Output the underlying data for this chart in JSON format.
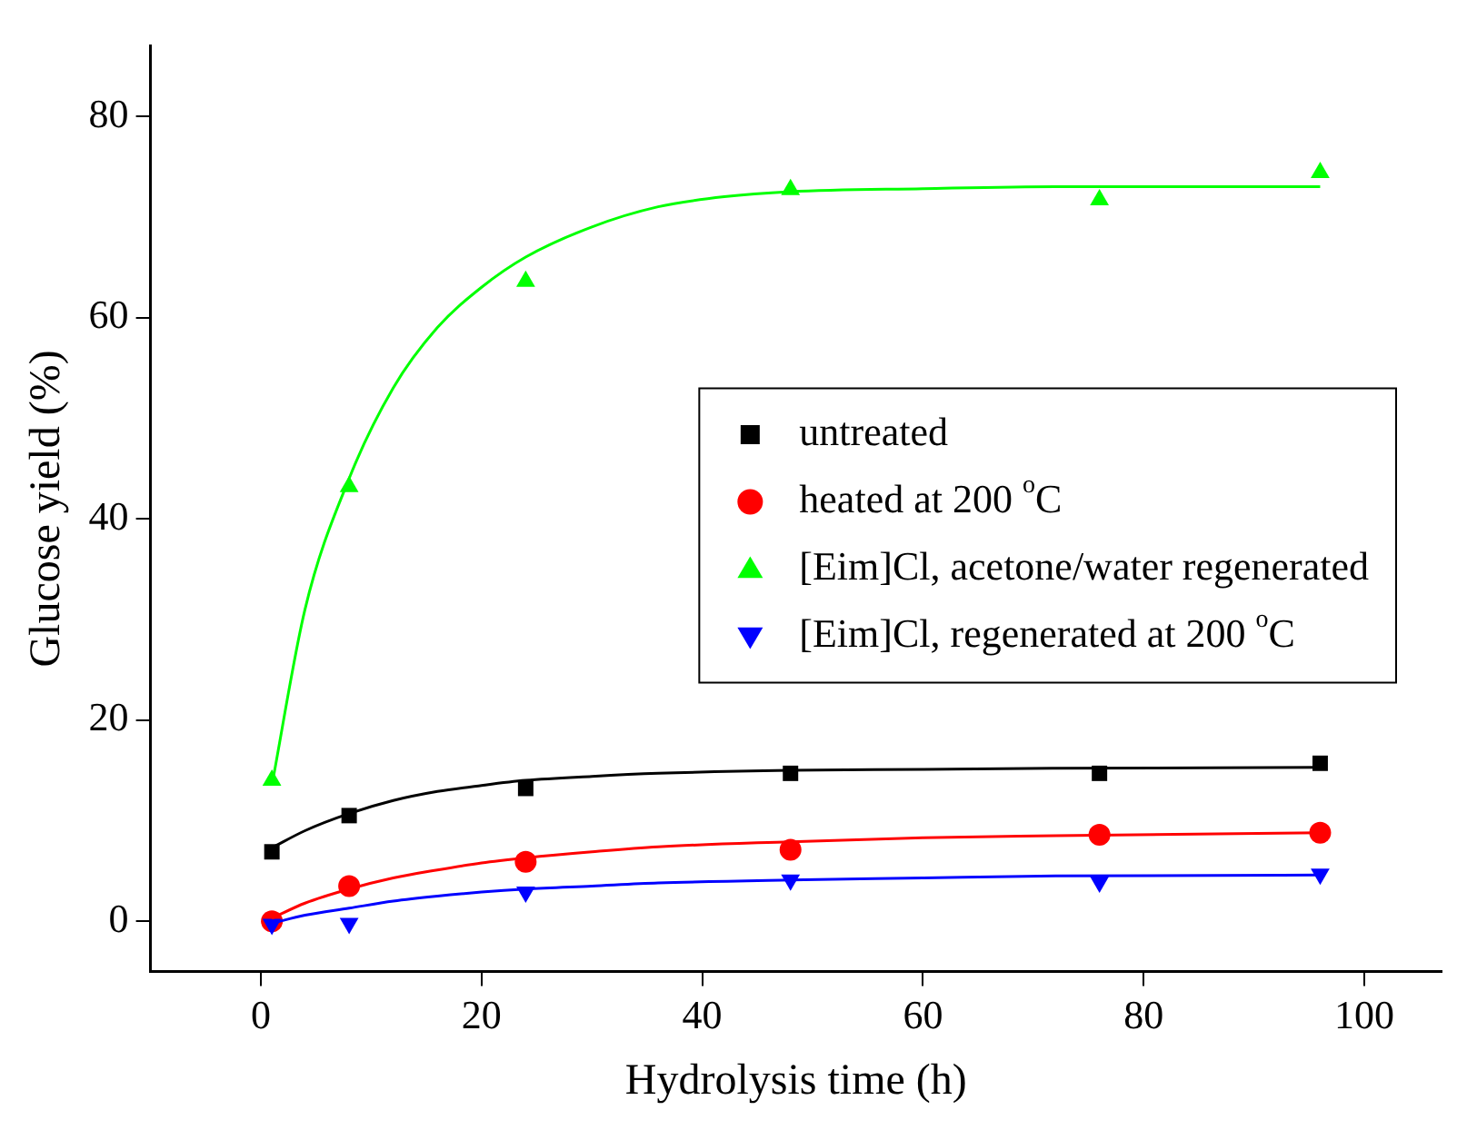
{
  "chart_data": {
    "type": "scatter",
    "xlabel": "Hydrolysis time (h)",
    "ylabel": "Glucose yield (%)",
    "xlim": [
      -10,
      107
    ],
    "xticks": [
      0,
      20,
      40,
      60,
      80,
      100
    ],
    "ylim": [
      -5,
      87
    ],
    "yticks": [
      0,
      20,
      40,
      60,
      80
    ],
    "grid": false,
    "legend": "right",
    "series": [
      {
        "name": "untreated",
        "type": "scatter",
        "marker": "square",
        "color": "#000000",
        "x": [
          1,
          8,
          24,
          48,
          76,
          96
        ],
        "values": [
          6.9,
          10.5,
          13.2,
          14.7,
          14.7,
          15.7
        ]
      },
      {
        "name": "heated at 200 $^{o}$C",
        "type": "scatter",
        "marker": "circle",
        "color": "#ff0000",
        "x": [
          1,
          8,
          24,
          48,
          76,
          96
        ],
        "values": [
          0,
          3.5,
          5.9,
          7.1,
          8.6,
          8.8
        ]
      },
      {
        "name": "[Eim]Cl, acetone/water regenerated",
        "type": "scatter",
        "marker": "triangle",
        "color": "#00ff00",
        "x": [
          1,
          8,
          24,
          48,
          76,
          96
        ],
        "values": [
          14,
          43.2,
          63.6,
          72.7,
          71.7,
          74.4
        ]
      },
      {
        "name": "[Eim]Cl, regenerated at 200 $^{o}$C",
        "type": "scatter",
        "marker": "triangle-down",
        "color": "#0000ff",
        "x": [
          1,
          8,
          24,
          48,
          76,
          96
        ],
        "values": [
          -0.3,
          -0.2,
          2.9,
          4.1,
          3.9,
          4.7
        ]
      },
      {
        "type": "line",
        "marker": "none",
        "color": "#000000",
        "x": [
          1,
          4,
          8,
          12,
          16,
          20,
          24,
          30,
          36,
          48,
          60,
          72,
          96
        ],
        "values": [
          7.3,
          9,
          10.7,
          12,
          12.9,
          13.5,
          14,
          14.4,
          14.7,
          15,
          15.1,
          15.2,
          15.3
        ]
      },
      {
        "type": "line",
        "marker": "none",
        "color": "#ff0000",
        "x": [
          1,
          4,
          8,
          12,
          16,
          20,
          24,
          30,
          36,
          48,
          60,
          72,
          96
        ],
        "values": [
          0.3,
          1.8,
          3.2,
          4.3,
          5.1,
          5.8,
          6.3,
          6.9,
          7.4,
          7.9,
          8.3,
          8.5,
          8.8
        ]
      },
      {
        "type": "line",
        "marker": "none",
        "color": "#00ff00",
        "x": [
          1,
          4,
          8,
          12,
          16,
          20,
          24,
          30,
          36,
          42,
          48,
          60,
          72,
          84,
          96
        ],
        "values": [
          13.5,
          31,
          44,
          53,
          59,
          63,
          66,
          69,
          71,
          72,
          72.5,
          72.8,
          73,
          73,
          73
        ]
      },
      {
        "type": "line",
        "marker": "none",
        "color": "#0000ff",
        "x": [
          1,
          4,
          8,
          12,
          16,
          20,
          24,
          30,
          36,
          48,
          60,
          72,
          96
        ],
        "values": [
          -0.2,
          0.6,
          1.3,
          2,
          2.5,
          2.9,
          3.2,
          3.5,
          3.8,
          4.1,
          4.3,
          4.5,
          4.6
        ]
      }
    ]
  }
}
